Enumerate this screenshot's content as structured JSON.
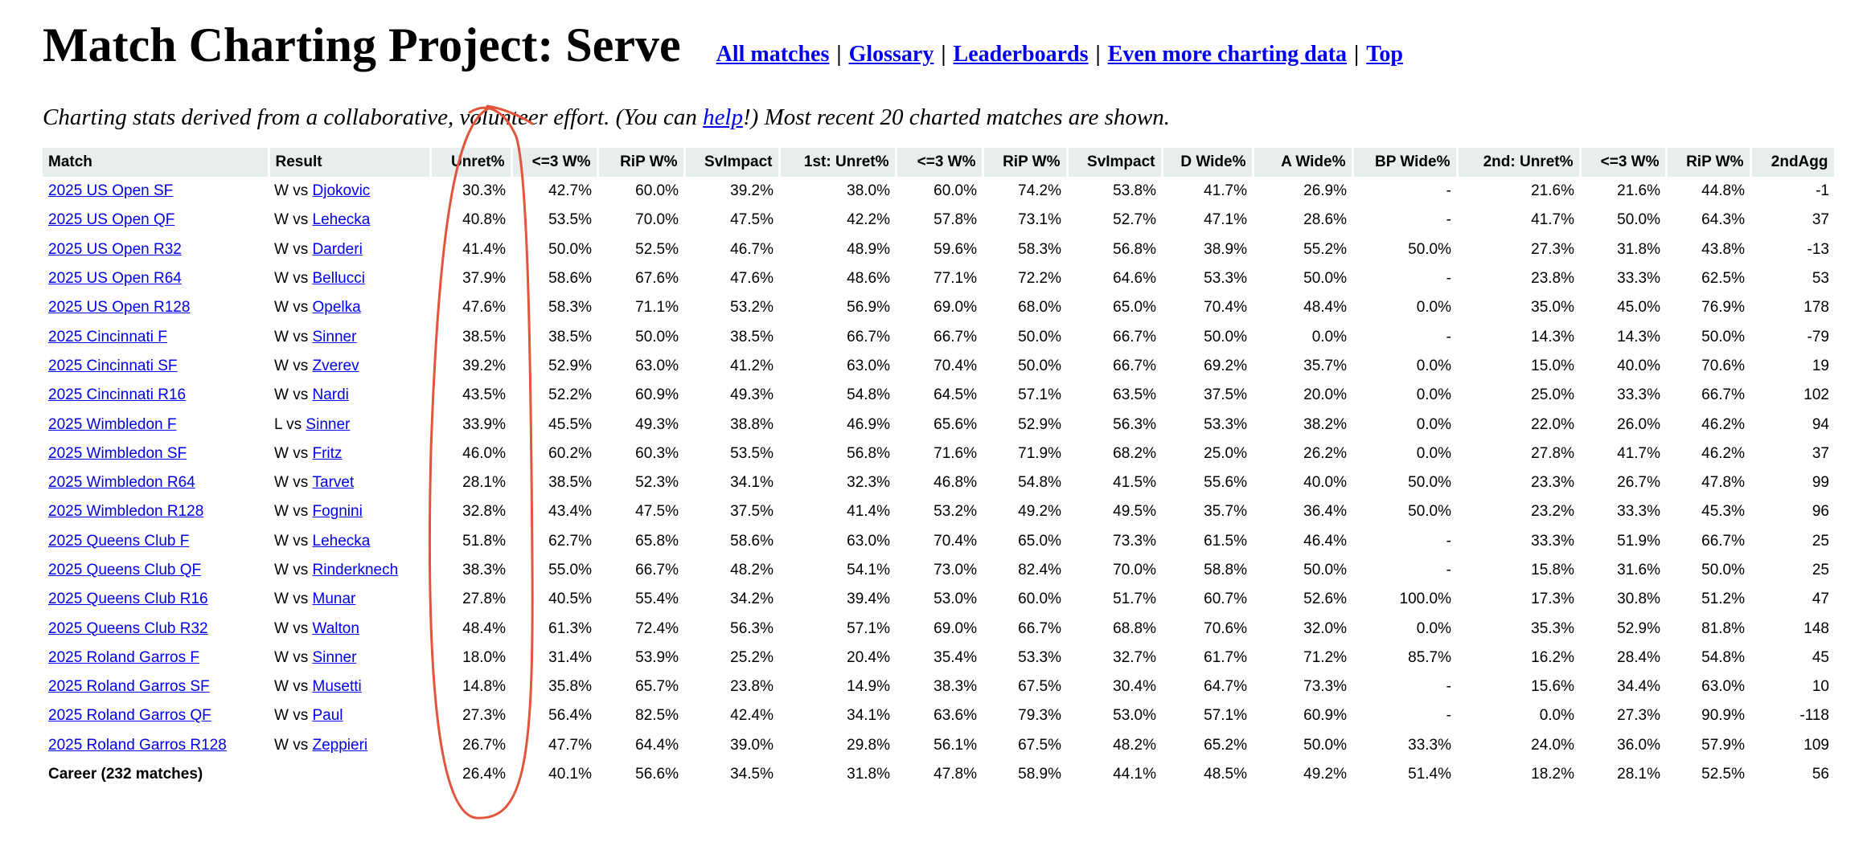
{
  "header": {
    "title": "Match Charting Project: Serve",
    "links": [
      "All matches",
      "Glossary",
      "Leaderboards",
      "Even more charting data",
      "Top"
    ],
    "separator": "|"
  },
  "subtitle": {
    "before": "Charting stats derived from a collaborative, volunteer effort. (You can ",
    "link": "help",
    "after": "!) Most recent 20 charted matches are shown."
  },
  "table": {
    "headers": [
      "Match",
      "Result",
      "Unret%",
      "<=3 W%",
      "RiP W%",
      "SvImpact",
      "1st: Unret%",
      "<=3 W%",
      "RiP W%",
      "SvImpact",
      "D Wide%",
      "A Wide%",
      "BP Wide%",
      "2nd: Unret%",
      "<=3 W%",
      "RiP W%",
      "2ndAgg"
    ],
    "rows": [
      {
        "match": "2025 US Open SF",
        "result": "W vs",
        "opponent": "Djokovic",
        "stats": [
          "30.3%",
          "42.7%",
          "60.0%",
          "39.2%",
          "38.0%",
          "60.0%",
          "74.2%",
          "53.8%",
          "41.7%",
          "26.9%",
          "-",
          "21.6%",
          "21.6%",
          "44.8%",
          "-1"
        ]
      },
      {
        "match": "2025 US Open QF",
        "result": "W vs",
        "opponent": "Lehecka",
        "stats": [
          "40.8%",
          "53.5%",
          "70.0%",
          "47.5%",
          "42.2%",
          "57.8%",
          "73.1%",
          "52.7%",
          "47.1%",
          "28.6%",
          "-",
          "41.7%",
          "50.0%",
          "64.3%",
          "37"
        ]
      },
      {
        "match": "2025 US Open R32",
        "result": "W vs",
        "opponent": "Darderi",
        "stats": [
          "41.4%",
          "50.0%",
          "52.5%",
          "46.7%",
          "48.9%",
          "59.6%",
          "58.3%",
          "56.8%",
          "38.9%",
          "55.2%",
          "50.0%",
          "27.3%",
          "31.8%",
          "43.8%",
          "-13"
        ]
      },
      {
        "match": "2025 US Open R64",
        "result": "W vs",
        "opponent": "Bellucci",
        "stats": [
          "37.9%",
          "58.6%",
          "67.6%",
          "47.6%",
          "48.6%",
          "77.1%",
          "72.2%",
          "64.6%",
          "53.3%",
          "50.0%",
          "-",
          "23.8%",
          "33.3%",
          "62.5%",
          "53"
        ]
      },
      {
        "match": "2025 US Open R128",
        "result": "W vs",
        "opponent": "Opelka",
        "stats": [
          "47.6%",
          "58.3%",
          "71.1%",
          "53.2%",
          "56.9%",
          "69.0%",
          "68.0%",
          "65.0%",
          "70.4%",
          "48.4%",
          "0.0%",
          "35.0%",
          "45.0%",
          "76.9%",
          "178"
        ]
      },
      {
        "match": "2025 Cincinnati F",
        "result": "W vs",
        "opponent": "Sinner",
        "stats": [
          "38.5%",
          "38.5%",
          "50.0%",
          "38.5%",
          "66.7%",
          "66.7%",
          "50.0%",
          "66.7%",
          "50.0%",
          "0.0%",
          "-",
          "14.3%",
          "14.3%",
          "50.0%",
          "-79"
        ]
      },
      {
        "match": "2025 Cincinnati SF",
        "result": "W vs",
        "opponent": "Zverev",
        "stats": [
          "39.2%",
          "52.9%",
          "63.0%",
          "41.2%",
          "63.0%",
          "70.4%",
          "50.0%",
          "66.7%",
          "69.2%",
          "35.7%",
          "0.0%",
          "15.0%",
          "40.0%",
          "70.6%",
          "19"
        ]
      },
      {
        "match": "2025 Cincinnati R16",
        "result": "W vs",
        "opponent": "Nardi",
        "stats": [
          "43.5%",
          "52.2%",
          "60.9%",
          "49.3%",
          "54.8%",
          "64.5%",
          "57.1%",
          "63.5%",
          "37.5%",
          "20.0%",
          "0.0%",
          "25.0%",
          "33.3%",
          "66.7%",
          "102"
        ]
      },
      {
        "match": "2025 Wimbledon F",
        "result": "L vs",
        "opponent": "Sinner",
        "stats": [
          "33.9%",
          "45.5%",
          "49.3%",
          "38.8%",
          "46.9%",
          "65.6%",
          "52.9%",
          "56.3%",
          "53.3%",
          "38.2%",
          "0.0%",
          "22.0%",
          "26.0%",
          "46.2%",
          "94"
        ]
      },
      {
        "match": "2025 Wimbledon SF",
        "result": "W vs",
        "opponent": "Fritz",
        "stats": [
          "46.0%",
          "60.2%",
          "60.3%",
          "53.5%",
          "56.8%",
          "71.6%",
          "71.9%",
          "68.2%",
          "25.0%",
          "26.2%",
          "0.0%",
          "27.8%",
          "41.7%",
          "46.2%",
          "37"
        ]
      },
      {
        "match": "2025 Wimbledon R64",
        "result": "W vs",
        "opponent": "Tarvet",
        "stats": [
          "28.1%",
          "38.5%",
          "52.3%",
          "34.1%",
          "32.3%",
          "46.8%",
          "54.8%",
          "41.5%",
          "55.6%",
          "40.0%",
          "50.0%",
          "23.3%",
          "26.7%",
          "47.8%",
          "99"
        ]
      },
      {
        "match": "2025 Wimbledon R128",
        "result": "W vs",
        "opponent": "Fognini",
        "stats": [
          "32.8%",
          "43.4%",
          "47.5%",
          "37.5%",
          "41.4%",
          "53.2%",
          "49.2%",
          "49.5%",
          "35.7%",
          "36.4%",
          "50.0%",
          "23.2%",
          "33.3%",
          "45.3%",
          "96"
        ]
      },
      {
        "match": "2025 Queens Club F",
        "result": "W vs",
        "opponent": "Lehecka",
        "stats": [
          "51.8%",
          "62.7%",
          "65.8%",
          "58.6%",
          "63.0%",
          "70.4%",
          "65.0%",
          "73.3%",
          "61.5%",
          "46.4%",
          "-",
          "33.3%",
          "51.9%",
          "66.7%",
          "25"
        ]
      },
      {
        "match": "2025 Queens Club QF",
        "result": "W vs",
        "opponent": "Rinderknech",
        "stats": [
          "38.3%",
          "55.0%",
          "66.7%",
          "48.2%",
          "54.1%",
          "73.0%",
          "82.4%",
          "70.0%",
          "58.8%",
          "50.0%",
          "-",
          "15.8%",
          "31.6%",
          "50.0%",
          "25"
        ]
      },
      {
        "match": "2025 Queens Club R16",
        "result": "W vs",
        "opponent": "Munar",
        "stats": [
          "27.8%",
          "40.5%",
          "55.4%",
          "34.2%",
          "39.4%",
          "53.0%",
          "60.0%",
          "51.7%",
          "60.7%",
          "52.6%",
          "100.0%",
          "17.3%",
          "30.8%",
          "51.2%",
          "47"
        ]
      },
      {
        "match": "2025 Queens Club R32",
        "result": "W vs",
        "opponent": "Walton",
        "stats": [
          "48.4%",
          "61.3%",
          "72.4%",
          "56.3%",
          "57.1%",
          "69.0%",
          "66.7%",
          "68.8%",
          "70.6%",
          "32.0%",
          "0.0%",
          "35.3%",
          "52.9%",
          "81.8%",
          "148"
        ]
      },
      {
        "match": "2025 Roland Garros F",
        "result": "W vs",
        "opponent": "Sinner",
        "stats": [
          "18.0%",
          "31.4%",
          "53.9%",
          "25.2%",
          "20.4%",
          "35.4%",
          "53.3%",
          "32.7%",
          "61.7%",
          "71.2%",
          "85.7%",
          "16.2%",
          "28.4%",
          "54.8%",
          "45"
        ]
      },
      {
        "match": "2025 Roland Garros SF",
        "result": "W vs",
        "opponent": "Musetti",
        "stats": [
          "14.8%",
          "35.8%",
          "65.7%",
          "23.8%",
          "14.9%",
          "38.3%",
          "67.5%",
          "30.4%",
          "64.7%",
          "73.3%",
          "-",
          "15.6%",
          "34.4%",
          "63.0%",
          "10"
        ]
      },
      {
        "match": "2025 Roland Garros QF",
        "result": "W vs",
        "opponent": "Paul",
        "stats": [
          "27.3%",
          "56.4%",
          "82.5%",
          "42.4%",
          "34.1%",
          "63.6%",
          "79.3%",
          "53.0%",
          "57.1%",
          "60.9%",
          "-",
          "0.0%",
          "27.3%",
          "90.9%",
          "-118"
        ]
      },
      {
        "match": "2025 Roland Garros R128",
        "result": "W vs",
        "opponent": "Zeppieri",
        "stats": [
          "26.7%",
          "47.7%",
          "64.4%",
          "39.0%",
          "29.8%",
          "56.1%",
          "67.5%",
          "48.2%",
          "65.2%",
          "50.0%",
          "33.3%",
          "24.0%",
          "36.0%",
          "57.9%",
          "109"
        ]
      }
    ],
    "career": {
      "match": "Career (232 matches)",
      "stats": [
        "26.4%",
        "40.1%",
        "56.6%",
        "34.5%",
        "31.8%",
        "47.8%",
        "58.9%",
        "44.1%",
        "48.5%",
        "49.2%",
        "51.4%",
        "18.2%",
        "28.1%",
        "52.5%",
        "56"
      ]
    }
  }
}
